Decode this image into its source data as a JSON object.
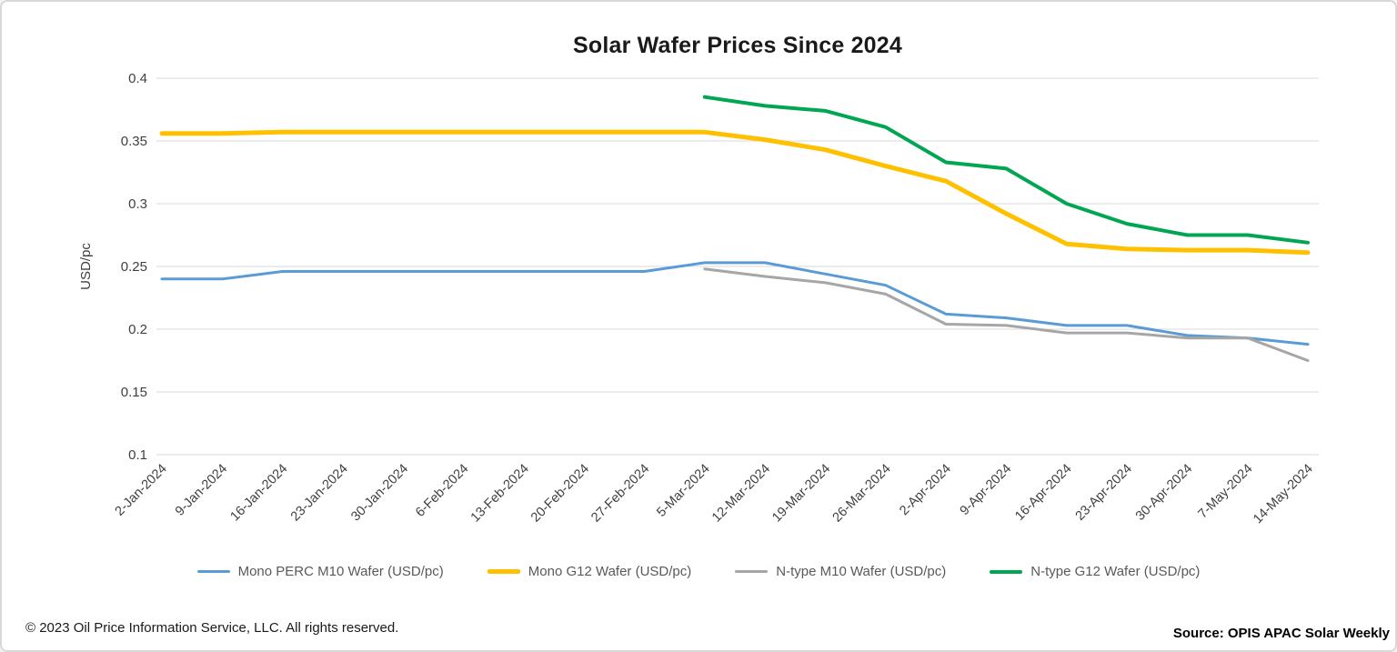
{
  "title": "Solar Wafer Prices Since 2024",
  "footer": {
    "copyright": "© 2023 Oil Price Information Service, LLC. All rights reserved.",
    "source": "Source: OPIS APAC Solar Weekly"
  },
  "colors": {
    "background": "#ffffff",
    "border": "#d9d9d9",
    "gridline": "#d9d9d9",
    "axis_text": "#404040",
    "legend_text": "#595959",
    "title_text": "#1a1a1a"
  },
  "chart_data": {
    "type": "line",
    "title": "Solar Wafer Prices Since 2024",
    "xlabel": "",
    "ylabel": "USD/pc",
    "ylim": [
      0.1,
      0.4
    ],
    "ytick_step": 0.05,
    "grid": true,
    "legend_position": "bottom",
    "categories": [
      "2-Jan-2024",
      "9-Jan-2024",
      "16-Jan-2024",
      "23-Jan-2024",
      "30-Jan-2024",
      "6-Feb-2024",
      "13-Feb-2024",
      "20-Feb-2024",
      "27-Feb-2024",
      "5-Mar-2024",
      "12-Mar-2024",
      "19-Mar-2024",
      "26-Mar-2024",
      "2-Apr-2024",
      "9-Apr-2024",
      "16-Apr-2024",
      "23-Apr-2024",
      "30-Apr-2024",
      "7-May-2024",
      "14-May-2024"
    ],
    "series": [
      {
        "name": "Mono PERC M10 Wafer (USD/pc)",
        "color": "#5B9BD5",
        "stroke_width": 3,
        "values": [
          0.24,
          0.24,
          0.246,
          0.246,
          0.246,
          0.246,
          0.246,
          0.246,
          0.246,
          0.253,
          0.253,
          0.244,
          0.235,
          0.212,
          0.209,
          0.203,
          0.203,
          0.195,
          0.193,
          0.188
        ]
      },
      {
        "name": "Mono G12 Wafer (USD/pc)",
        "color": "#FFC000",
        "stroke_width": 5,
        "values": [
          0.356,
          0.356,
          0.357,
          0.357,
          0.357,
          0.357,
          0.357,
          0.357,
          0.357,
          0.357,
          0.351,
          0.343,
          0.33,
          0.318,
          0.292,
          0.268,
          0.264,
          0.263,
          0.263,
          0.261
        ]
      },
      {
        "name": "N-type M10 Wafer (USD/pc)",
        "color": "#A6A6A6",
        "stroke_width": 3,
        "values": [
          null,
          null,
          null,
          null,
          null,
          null,
          null,
          null,
          null,
          0.248,
          0.242,
          0.237,
          0.228,
          0.204,
          0.203,
          0.197,
          0.197,
          0.193,
          0.193,
          0.175
        ]
      },
      {
        "name": "N-type G12 Wafer (USD/pc)",
        "color": "#00A651",
        "stroke_width": 4,
        "values": [
          null,
          null,
          null,
          null,
          null,
          null,
          null,
          null,
          null,
          0.385,
          0.378,
          0.374,
          0.361,
          0.333,
          0.328,
          0.3,
          0.284,
          0.275,
          0.275,
          0.269
        ]
      }
    ]
  }
}
